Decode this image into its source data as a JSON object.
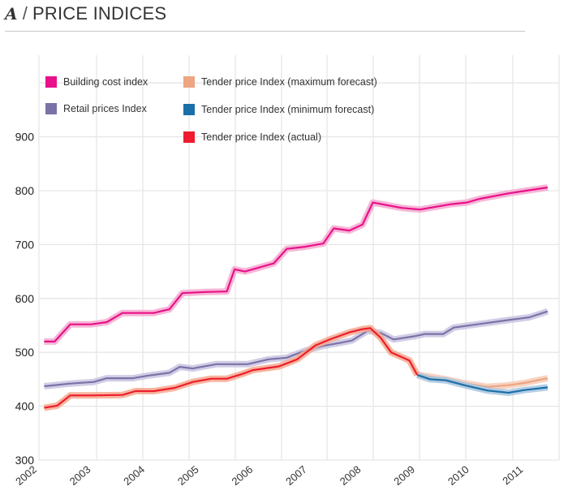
{
  "header": {
    "letter": "A",
    "separator": "/",
    "title": "PRICE INDICES"
  },
  "chart_data": {
    "type": "line",
    "title": "PRICE INDICES",
    "xlabel": "",
    "ylabel": "",
    "xlim": [
      2002,
      2011.95
    ],
    "ylim": [
      290,
      1050
    ],
    "yticks": [
      300,
      400,
      500,
      600,
      700,
      800,
      900,
      1000
    ],
    "ytick_labels": [
      "300",
      "400",
      "500",
      "600",
      "700",
      "800",
      "900",
      ""
    ],
    "xticks": [
      2002,
      2003,
      2004,
      2005,
      2006,
      2007,
      2008,
      2009,
      2010,
      2011
    ],
    "xtick_labels": [
      "2002",
      "2003",
      "2004",
      "2005",
      "2006",
      "2007",
      "2008",
      "2009",
      "2010",
      "2011"
    ],
    "grid": true,
    "legend_position": "top-left",
    "series": [
      {
        "name": "Building cost index",
        "color": "#e8118a",
        "band": "#f4a9cf",
        "points": [
          [
            2002.1,
            520
          ],
          [
            2002.3,
            520
          ],
          [
            2002.6,
            552
          ],
          [
            2003.0,
            552
          ],
          [
            2003.3,
            556
          ],
          [
            2003.6,
            573
          ],
          [
            2004.0,
            573
          ],
          [
            2004.2,
            573
          ],
          [
            2004.5,
            580
          ],
          [
            2004.75,
            610
          ],
          [
            2005.2,
            612
          ],
          [
            2005.6,
            613
          ],
          [
            2005.75,
            654
          ],
          [
            2005.95,
            650
          ],
          [
            2006.5,
            665
          ],
          [
            2006.75,
            692
          ],
          [
            2007.1,
            696
          ],
          [
            2007.45,
            702
          ],
          [
            2007.65,
            730
          ],
          [
            2007.95,
            726
          ],
          [
            2008.2,
            737
          ],
          [
            2008.4,
            778
          ],
          [
            2008.95,
            768
          ],
          [
            2009.3,
            765
          ],
          [
            2009.9,
            775
          ],
          [
            2010.2,
            778
          ],
          [
            2010.45,
            785
          ],
          [
            2011.0,
            795
          ],
          [
            2011.75,
            806
          ]
        ]
      },
      {
        "name": "Retail prices Index",
        "color": "#7b72a8",
        "band": "#c9c4e0",
        "points": [
          [
            2002.1,
            437
          ],
          [
            2002.6,
            442
          ],
          [
            2003.05,
            445
          ],
          [
            2003.3,
            452
          ],
          [
            2003.8,
            452
          ],
          [
            2004.1,
            457
          ],
          [
            2004.5,
            462
          ],
          [
            2004.7,
            473
          ],
          [
            2004.95,
            470
          ],
          [
            2005.4,
            478
          ],
          [
            2006.0,
            478
          ],
          [
            2006.4,
            487
          ],
          [
            2006.75,
            490
          ],
          [
            2007.1,
            503
          ],
          [
            2007.45,
            512
          ],
          [
            2007.8,
            518
          ],
          [
            2008.0,
            522
          ],
          [
            2008.3,
            540
          ],
          [
            2008.55,
            536
          ],
          [
            2008.8,
            524
          ],
          [
            2009.2,
            530
          ],
          [
            2009.4,
            534
          ],
          [
            2009.75,
            534
          ],
          [
            2009.95,
            546
          ],
          [
            2010.4,
            552
          ],
          [
            2011.0,
            560
          ],
          [
            2011.4,
            565
          ],
          [
            2011.75,
            576
          ]
        ]
      },
      {
        "name": "Tender price Index (maximum forecast)",
        "color": "#eda582",
        "band": "#f6cdb8",
        "points": [
          [
            2009.25,
            458
          ],
          [
            2009.5,
            455
          ],
          [
            2009.8,
            450
          ],
          [
            2010.2,
            442
          ],
          [
            2010.6,
            436
          ],
          [
            2011.0,
            439
          ],
          [
            2011.3,
            443
          ],
          [
            2011.75,
            452
          ]
        ]
      },
      {
        "name": "Tender price Index (minimum forecast)",
        "color": "#1b6fa8",
        "band": "#a8c6e0",
        "points": [
          [
            2009.25,
            458
          ],
          [
            2009.5,
            450
          ],
          [
            2009.8,
            448
          ],
          [
            2010.2,
            438
          ],
          [
            2010.6,
            429
          ],
          [
            2011.0,
            425
          ],
          [
            2011.3,
            430
          ],
          [
            2011.75,
            435
          ]
        ]
      },
      {
        "name": "Tender price Index (actual)",
        "color": "#ee1c2e",
        "band": "#f5a98e",
        "points": [
          [
            2002.1,
            397
          ],
          [
            2002.35,
            401
          ],
          [
            2002.6,
            420
          ],
          [
            2003.0,
            420
          ],
          [
            2003.6,
            421
          ],
          [
            2003.85,
            428
          ],
          [
            2004.2,
            428
          ],
          [
            2004.6,
            434
          ],
          [
            2004.95,
            445
          ],
          [
            2005.3,
            451
          ],
          [
            2005.6,
            451
          ],
          [
            2005.9,
            460
          ],
          [
            2006.1,
            467
          ],
          [
            2006.6,
            474
          ],
          [
            2006.95,
            487
          ],
          [
            2007.3,
            513
          ],
          [
            2007.6,
            525
          ],
          [
            2007.95,
            537
          ],
          [
            2008.2,
            543
          ],
          [
            2008.35,
            545
          ],
          [
            2008.55,
            527
          ],
          [
            2008.75,
            500
          ],
          [
            2009.1,
            485
          ],
          [
            2009.25,
            458
          ]
        ]
      }
    ]
  },
  "legend": [
    {
      "label": "Building cost index",
      "color": "#e8118a"
    },
    {
      "label": "Retail prices Index",
      "color": "#7b72a8"
    },
    {
      "label": "Tender price Index (maximum forecast)",
      "color": "#eda582"
    },
    {
      "label": "Tender price Index (minimum forecast)",
      "color": "#1b6fa8"
    },
    {
      "label": "Tender price Index (actual)",
      "color": "#ee1c2e"
    }
  ]
}
